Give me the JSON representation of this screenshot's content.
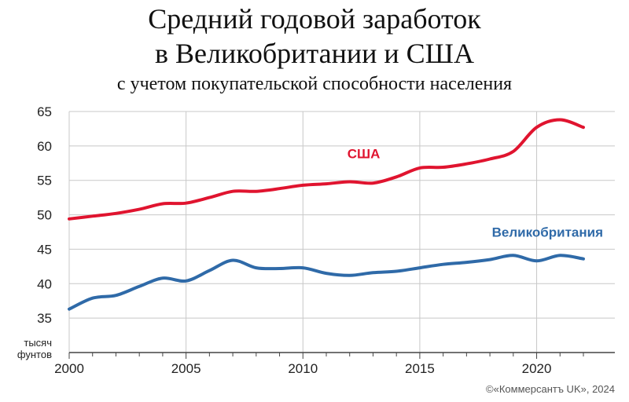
{
  "title_line1": "Средний годовой заработок",
  "title_line2": "в Великобритании и США",
  "subtitle": "с учетом покупательской способности населения",
  "unit_line1": "тысяч",
  "unit_line2": "фунтов",
  "credit": "©«Коммерсантъ UK», 2024",
  "colors": {
    "usa": "#e0142f",
    "uk": "#2f6aa8",
    "grid": "#c8c8c8",
    "axis": "#444444"
  },
  "chart_data": {
    "type": "line",
    "title": "Средний годовой заработок в Великобритании и США",
    "subtitle": "с учетом покупательской способности населения",
    "xlabel": "",
    "ylabel": "тысяч фунтов",
    "xlim": [
      2000,
      2022
    ],
    "ylim": [
      30,
      65
    ],
    "x_ticks": [
      2000,
      2005,
      2010,
      2015,
      2020
    ],
    "y_ticks": [
      35,
      40,
      45,
      50,
      55,
      60,
      65
    ],
    "grid": "horizontal",
    "x": [
      2000,
      2001,
      2002,
      2003,
      2004,
      2005,
      2006,
      2007,
      2008,
      2009,
      2010,
      2011,
      2012,
      2013,
      2014,
      2015,
      2016,
      2017,
      2018,
      2019,
      2020,
      2021,
      2022
    ],
    "series": [
      {
        "name": "США",
        "color": "#e0142f",
        "values": [
          49.4,
          49.8,
          50.2,
          50.8,
          51.6,
          51.7,
          52.5,
          53.4,
          53.4,
          53.8,
          54.3,
          54.5,
          54.8,
          54.6,
          55.5,
          56.8,
          56.9,
          57.4,
          58.1,
          59.2,
          62.7,
          63.8,
          62.7
        ]
      },
      {
        "name": "Великобритания",
        "color": "#2f6aa8",
        "values": [
          36.3,
          37.9,
          38.3,
          39.6,
          40.8,
          40.4,
          41.9,
          43.4,
          42.3,
          42.2,
          42.3,
          41.5,
          41.2,
          41.6,
          41.8,
          42.3,
          42.8,
          43.1,
          43.5,
          44.1,
          43.3,
          44.1,
          43.6
        ]
      }
    ]
  }
}
